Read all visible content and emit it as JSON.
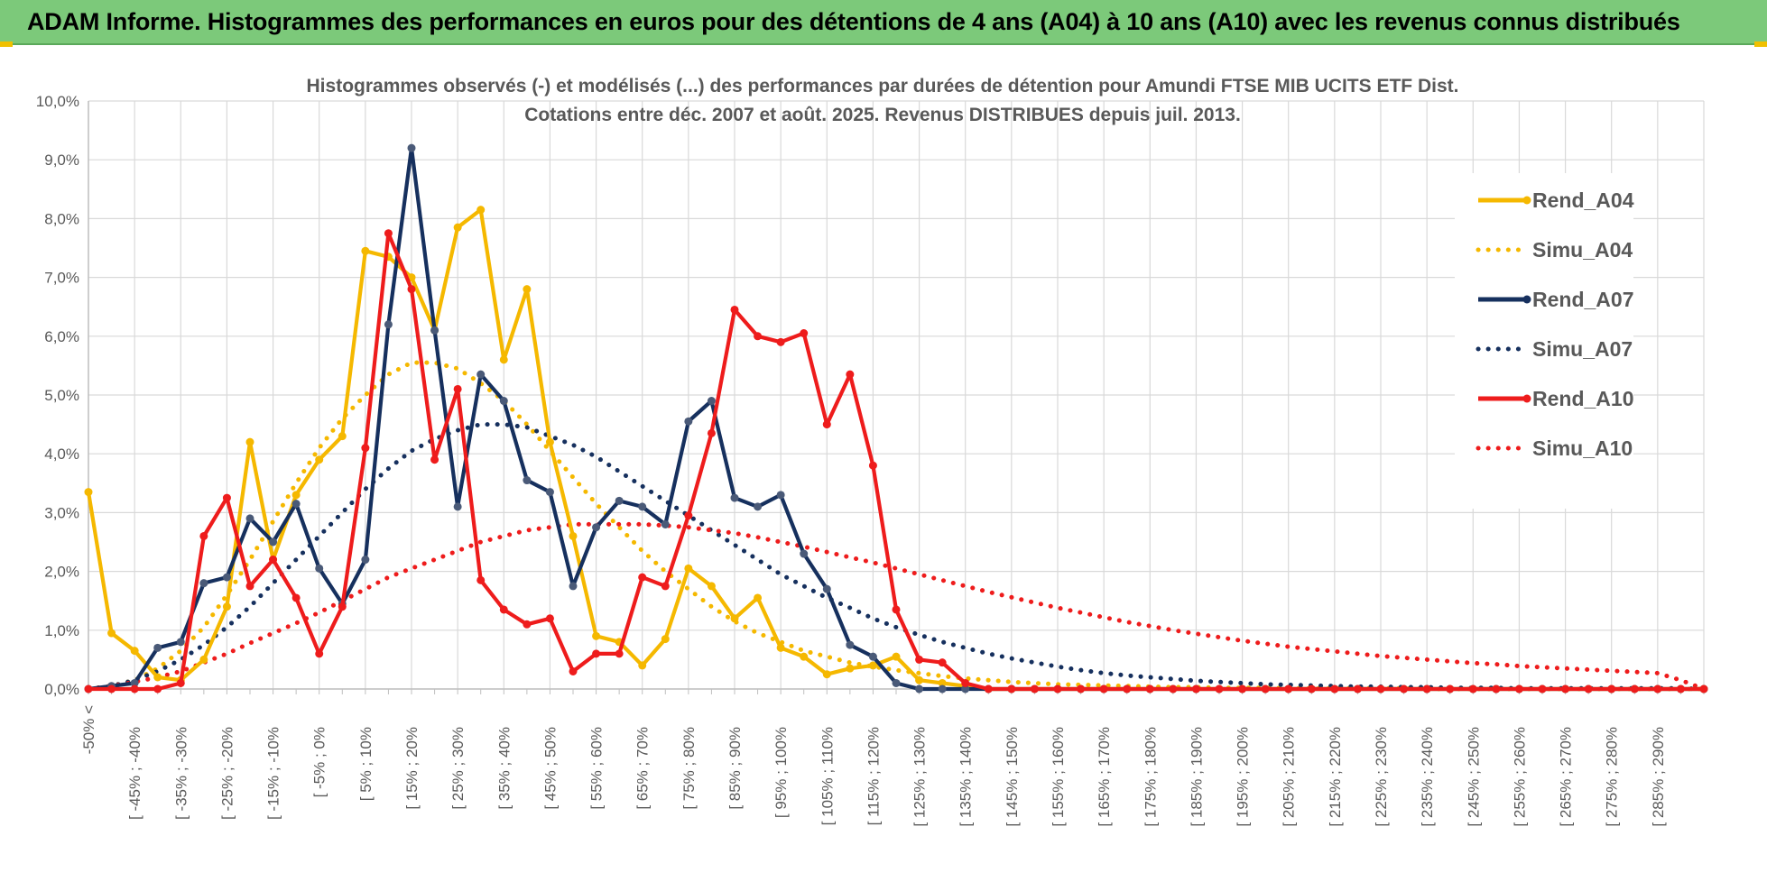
{
  "banner": {
    "title": "ADAM Informe. Histogrammes des performances en euros pour des détentions de 4 ans (A04) à 10 ans (A10) avec les revenus connus distribués"
  },
  "colors": {
    "banner_bg": "#7cc97a",
    "A04": "#f5b800",
    "A07": "#16305e",
    "A10": "#ee1c1c",
    "grid": "#d9d9d9"
  },
  "chart_data": {
    "type": "line",
    "title": "Histogrammes observés (-) et modélisés (...)  des performances par durées de détention pour Amundi FTSE MIB UCITS ETF Dist.",
    "subtitle": "Cotations entre déc. 2007 et août. 2025.  Revenus DISTRIBUES depuis juil. 2013.",
    "xlabel": "",
    "ylabel": "",
    "ylim": [
      0,
      10
    ],
    "y_unit": "%",
    "y_ticks": [
      "0,0%",
      "1,0%",
      "2,0%",
      "3,0%",
      "4,0%",
      "5,0%",
      "6,0%",
      "7,0%",
      "8,0%",
      "9,0%",
      "10,0%"
    ],
    "legend_position": "right",
    "grid": true,
    "categories": [
      "-50% <",
      "",
      "[ -45% ; -40%",
      "",
      "[ -35% ; -30%",
      "",
      "[ -25% ; -20%",
      "",
      "[ -15% ; -10%",
      "",
      "[ -5% ; 0%",
      "",
      "[ 5% ; 10%",
      "",
      "[ 15% ; 20%",
      "",
      "[ 25% ; 30%",
      "",
      "[ 35% ; 40%",
      "",
      "[ 45% ; 50%",
      "",
      "[ 55% ; 60%",
      "",
      "[ 65% ; 70%",
      "",
      "[ 75% ; 80%",
      "",
      "[ 85% ; 90%",
      "",
      "[ 95% ; 100%",
      "",
      "[ 105% ; 110%",
      "",
      "[ 115% ; 120%",
      "",
      "[ 125% ; 130%",
      "",
      "[ 135% ; 140%",
      "",
      "[ 145% ; 150%",
      "",
      "[ 155% ; 160%",
      "",
      "[ 165% ; 170%",
      "",
      "[ 175% ; 180%",
      "",
      "[ 185% ; 190%",
      "",
      "[ 195% ; 200%",
      "",
      "[ 205% ; 210%",
      "",
      "[ 215% ; 220%",
      "",
      "[ 225% ; 230%",
      "",
      "[ 235% ; 240%",
      "",
      "[ 245% ; 250%",
      "",
      "[ 255% ; 260%",
      "",
      "[ 265% ; 270%",
      "",
      "[ 275% ; 280%",
      "",
      "[ 285% ; 290%",
      "",
      ""
    ],
    "series": [
      {
        "name": "Rend_A04",
        "style": "solid",
        "color": "#f5b800",
        "values": [
          3.35,
          0.95,
          0.65,
          0.2,
          0.15,
          0.5,
          1.4,
          4.2,
          2.2,
          3.3,
          3.9,
          4.3,
          7.45,
          7.35,
          7.0,
          6.1,
          7.85,
          8.15,
          5.6,
          6.8,
          4.2,
          2.6,
          0.9,
          0.8,
          0.4,
          0.85,
          2.05,
          1.75,
          1.2,
          1.55,
          0.7,
          0.55,
          0.25,
          0.35,
          0.4,
          0.55,
          0.15,
          0.1,
          0.05,
          0,
          0,
          0,
          0,
          0,
          0,
          0,
          0,
          0,
          0,
          0,
          0,
          0,
          0,
          0,
          0,
          0,
          0,
          0,
          0,
          0,
          0,
          0,
          0,
          0,
          0,
          0,
          0,
          0,
          0,
          0,
          0
        ]
      },
      {
        "name": "Simu_A04",
        "style": "dotted",
        "color": "#f5b800",
        "values": [
          0,
          0.05,
          0.15,
          0.35,
          0.65,
          1.05,
          1.6,
          2.2,
          2.85,
          3.5,
          4.1,
          4.6,
          5.0,
          5.35,
          5.55,
          5.55,
          5.45,
          5.2,
          4.9,
          4.5,
          4.05,
          3.6,
          3.15,
          2.75,
          2.35,
          2.0,
          1.7,
          1.4,
          1.15,
          0.95,
          0.8,
          0.65,
          0.55,
          0.45,
          0.38,
          0.32,
          0.27,
          0.22,
          0.18,
          0.15,
          0.12,
          0.1,
          0.08,
          0.07,
          0.06,
          0.05,
          0.04,
          0.03,
          0.03,
          0.02,
          0.02,
          0.02,
          0.01,
          0.01,
          0.01,
          0.01,
          0.01,
          0.01,
          0,
          0,
          0,
          0,
          0,
          0,
          0,
          0,
          0,
          0,
          0,
          0,
          0
        ]
      },
      {
        "name": "Rend_A07",
        "style": "solid",
        "color": "#16305e",
        "values": [
          0,
          0.05,
          0.1,
          0.7,
          0.8,
          1.8,
          1.9,
          2.9,
          2.5,
          3.15,
          2.05,
          1.45,
          2.2,
          6.2,
          9.2,
          6.1,
          3.1,
          5.35,
          4.9,
          3.55,
          3.35,
          1.75,
          2.75,
          3.2,
          3.1,
          2.8,
          4.55,
          4.9,
          3.25,
          3.1,
          3.3,
          2.3,
          1.7,
          0.75,
          0.55,
          0.1,
          0,
          0,
          0,
          0,
          0,
          0,
          0,
          0,
          0,
          0,
          0,
          0,
          0,
          0,
          0,
          0,
          0,
          0,
          0,
          0,
          0,
          0,
          0,
          0,
          0,
          0,
          0,
          0,
          0,
          0,
          0,
          0,
          0,
          0,
          0
        ]
      },
      {
        "name": "Simu_A07",
        "style": "dotted",
        "color": "#16305e",
        "values": [
          0,
          0.05,
          0.15,
          0.3,
          0.5,
          0.75,
          1.05,
          1.4,
          1.8,
          2.2,
          2.6,
          3.0,
          3.4,
          3.75,
          4.05,
          4.25,
          4.4,
          4.5,
          4.5,
          4.45,
          4.3,
          4.15,
          3.95,
          3.7,
          3.45,
          3.2,
          2.95,
          2.7,
          2.45,
          2.2,
          1.95,
          1.75,
          1.55,
          1.38,
          1.2,
          1.05,
          0.92,
          0.8,
          0.7,
          0.6,
          0.52,
          0.45,
          0.38,
          0.32,
          0.27,
          0.23,
          0.2,
          0.17,
          0.14,
          0.12,
          0.1,
          0.08,
          0.07,
          0.06,
          0.05,
          0.04,
          0.04,
          0.03,
          0.03,
          0.02,
          0.02,
          0.02,
          0.01,
          0.01,
          0.01,
          0.01,
          0.01,
          0.01,
          0.01,
          0.01,
          0
        ]
      },
      {
        "name": "Rend_A10",
        "style": "solid",
        "color": "#ee1c1c",
        "values": [
          0,
          0,
          0,
          0,
          0.1,
          2.6,
          3.25,
          1.75,
          2.2,
          1.55,
          0.6,
          1.4,
          4.1,
          7.75,
          6.8,
          3.9,
          5.1,
          1.85,
          1.35,
          1.1,
          1.2,
          0.3,
          0.6,
          0.6,
          1.9,
          1.75,
          2.95,
          4.35,
          6.45,
          6.0,
          5.9,
          6.05,
          4.5,
          5.35,
          3.8,
          1.35,
          0.5,
          0.45,
          0.1,
          0,
          0,
          0,
          0,
          0,
          0,
          0,
          0,
          0,
          0,
          0,
          0,
          0,
          0,
          0,
          0,
          0,
          0,
          0,
          0,
          0,
          0,
          0,
          0,
          0,
          0,
          0,
          0,
          0,
          0,
          0,
          0
        ]
      },
      {
        "name": "Simu_A10",
        "style": "dotted",
        "color": "#ee1c1c",
        "values": [
          0,
          0.05,
          0.12,
          0.2,
          0.3,
          0.45,
          0.6,
          0.78,
          0.95,
          1.12,
          1.3,
          1.5,
          1.7,
          1.9,
          2.05,
          2.2,
          2.35,
          2.5,
          2.6,
          2.7,
          2.75,
          2.8,
          2.8,
          2.8,
          2.8,
          2.78,
          2.75,
          2.7,
          2.65,
          2.58,
          2.5,
          2.42,
          2.33,
          2.24,
          2.15,
          2.05,
          1.95,
          1.85,
          1.75,
          1.65,
          1.56,
          1.47,
          1.38,
          1.3,
          1.22,
          1.14,
          1.07,
          1.0,
          0.94,
          0.88,
          0.82,
          0.77,
          0.72,
          0.68,
          0.64,
          0.6,
          0.56,
          0.53,
          0.5,
          0.47,
          0.44,
          0.42,
          0.39,
          0.37,
          0.35,
          0.33,
          0.31,
          0.29,
          0.27,
          0.15,
          0
        ]
      }
    ]
  }
}
